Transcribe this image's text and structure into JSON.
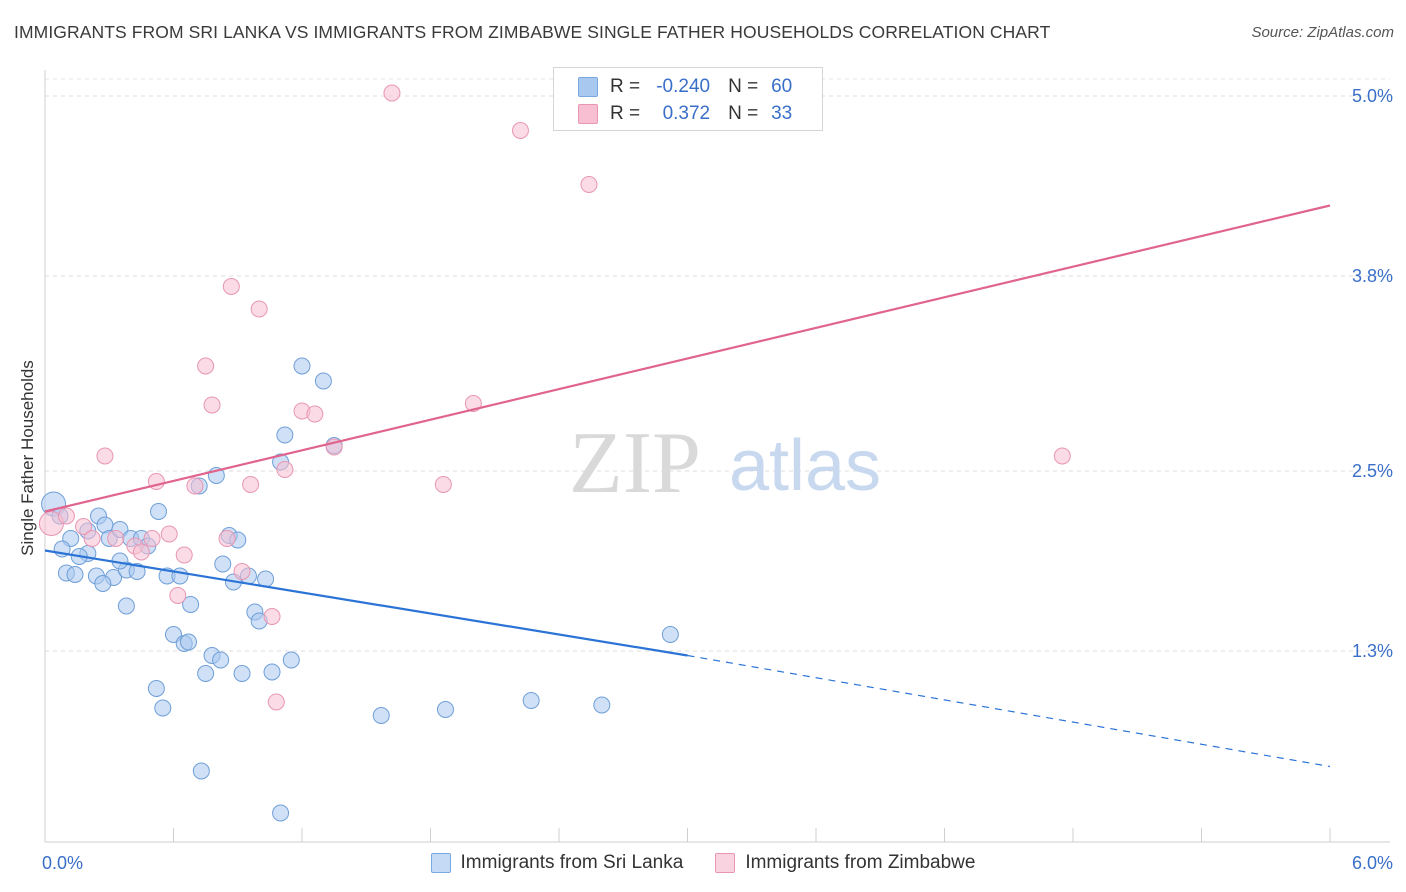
{
  "title": "IMMIGRANTS FROM SRI LANKA VS IMMIGRANTS FROM ZIMBABWE SINGLE FATHER HOUSEHOLDS CORRELATION CHART",
  "source": "Source: ZipAtlas.com",
  "watermark": {
    "zip": "ZIP",
    "atlas": "atlas"
  },
  "legend": {
    "rows": [
      {
        "r_label": "R =",
        "r_value": "-0.240",
        "n_label": "N =",
        "n_value": "60",
        "color": "#a9c8f0",
        "border": "#7aa8e0"
      },
      {
        "r_label": "R =",
        "r_value": "0.372",
        "n_label": "N =",
        "n_value": "33",
        "color": "#f7bfd1",
        "border": "#e896b3"
      }
    ]
  },
  "chart_data": {
    "type": "scatter",
    "title": "IMMIGRANTS FROM SRI LANKA VS IMMIGRANTS FROM ZIMBABWE SINGLE FATHER HOUSEHOLDS CORRELATION CHART",
    "xlabel": "",
    "ylabel": "Single Father Households",
    "xlim": [
      0.0,
      6.0
    ],
    "ylim": [
      0.0,
      5.2
    ],
    "x_tick_labels": [
      "0.0%",
      "6.0%"
    ],
    "y_ticks": [
      1.3,
      2.5,
      3.8,
      5.0
    ],
    "y_tick_labels": [
      "1.3%",
      "2.5%",
      "3.8%",
      "5.0%"
    ],
    "grid": true,
    "series": [
      {
        "name": "Immigrants from Sri Lanka",
        "color": "#a9c8f0",
        "edge": "#6f9fd8",
        "line_color": "#2b74d6",
        "trend": {
          "x0": 0.0,
          "y0": 1.97,
          "x1": 3.0,
          "y1": 1.27,
          "dash_to_x": 6.0,
          "dash_to_y": 0.53
        },
        "points": [
          [
            0.04,
            2.28
          ],
          [
            0.07,
            2.2
          ],
          [
            0.12,
            2.05
          ],
          [
            0.08,
            1.98
          ],
          [
            0.1,
            1.82
          ],
          [
            0.14,
            1.81
          ],
          [
            0.2,
            2.1
          ],
          [
            0.25,
            2.2
          ],
          [
            0.28,
            2.14
          ],
          [
            0.3,
            2.05
          ],
          [
            0.35,
            2.11
          ],
          [
            0.4,
            2.05
          ],
          [
            0.45,
            2.05
          ],
          [
            0.2,
            1.95
          ],
          [
            0.16,
            1.93
          ],
          [
            0.24,
            1.8
          ],
          [
            0.32,
            1.79
          ],
          [
            0.38,
            1.84
          ],
          [
            0.43,
            1.83
          ],
          [
            0.48,
            2.0
          ],
          [
            0.53,
            2.23
          ],
          [
            0.57,
            1.8
          ],
          [
            0.63,
            1.8
          ],
          [
            0.68,
            1.61
          ],
          [
            0.72,
            2.4
          ],
          [
            0.8,
            2.47
          ],
          [
            0.83,
            1.88
          ],
          [
            0.86,
            2.07
          ],
          [
            0.9,
            2.04
          ],
          [
            0.95,
            1.8
          ],
          [
            1.03,
            1.78
          ],
          [
            1.1,
            2.56
          ],
          [
            1.12,
            2.74
          ],
          [
            1.2,
            3.2
          ],
          [
            1.3,
            3.1
          ],
          [
            1.35,
            2.67
          ],
          [
            0.27,
            1.75
          ],
          [
            0.38,
            1.6
          ],
          [
            0.6,
            1.41
          ],
          [
            0.65,
            1.35
          ],
          [
            0.67,
            1.36
          ],
          [
            0.78,
            1.27
          ],
          [
            0.82,
            1.24
          ],
          [
            0.75,
            1.15
          ],
          [
            0.92,
            1.15
          ],
          [
            1.06,
            1.16
          ],
          [
            1.15,
            1.24
          ],
          [
            0.98,
            1.56
          ],
          [
            1.0,
            1.5
          ],
          [
            0.52,
            1.05
          ],
          [
            0.55,
            0.92
          ],
          [
            1.57,
            0.87
          ],
          [
            1.87,
            0.91
          ],
          [
            2.27,
            0.97
          ],
          [
            2.6,
            0.94
          ],
          [
            2.92,
            1.41
          ],
          [
            0.88,
            1.76
          ],
          [
            0.35,
            1.9
          ],
          [
            0.73,
            0.5
          ],
          [
            1.1,
            0.22
          ]
        ]
      },
      {
        "name": "Immigrants from Zimbabwe",
        "color": "#f7bfd1",
        "edge": "#e896b3",
        "line_color": "#e0648d",
        "trend": {
          "x0": 0.0,
          "y0": 2.23,
          "x1": 6.0,
          "y1": 4.27
        },
        "points": [
          [
            0.03,
            2.15
          ],
          [
            0.1,
            2.2
          ],
          [
            0.18,
            2.13
          ],
          [
            0.22,
            2.05
          ],
          [
            0.33,
            2.05
          ],
          [
            0.42,
            2.0
          ],
          [
            0.45,
            1.96
          ],
          [
            0.5,
            2.05
          ],
          [
            0.52,
            2.43
          ],
          [
            0.58,
            2.08
          ],
          [
            0.62,
            1.67
          ],
          [
            0.65,
            1.94
          ],
          [
            0.7,
            2.4
          ],
          [
            0.75,
            3.2
          ],
          [
            0.78,
            2.94
          ],
          [
            0.85,
            2.05
          ],
          [
            0.87,
            3.73
          ],
          [
            0.92,
            1.83
          ],
          [
            0.96,
            2.41
          ],
          [
            1.0,
            3.58
          ],
          [
            1.06,
            1.53
          ],
          [
            1.12,
            2.51
          ],
          [
            1.2,
            2.9
          ],
          [
            1.26,
            2.88
          ],
          [
            1.35,
            2.66
          ],
          [
            1.62,
            5.02
          ],
          [
            1.86,
            2.41
          ],
          [
            2.0,
            2.95
          ],
          [
            2.22,
            4.77
          ],
          [
            2.54,
            4.41
          ],
          [
            0.28,
            2.6
          ],
          [
            1.08,
            0.96
          ],
          [
            4.75,
            2.6
          ]
        ]
      }
    ]
  }
}
